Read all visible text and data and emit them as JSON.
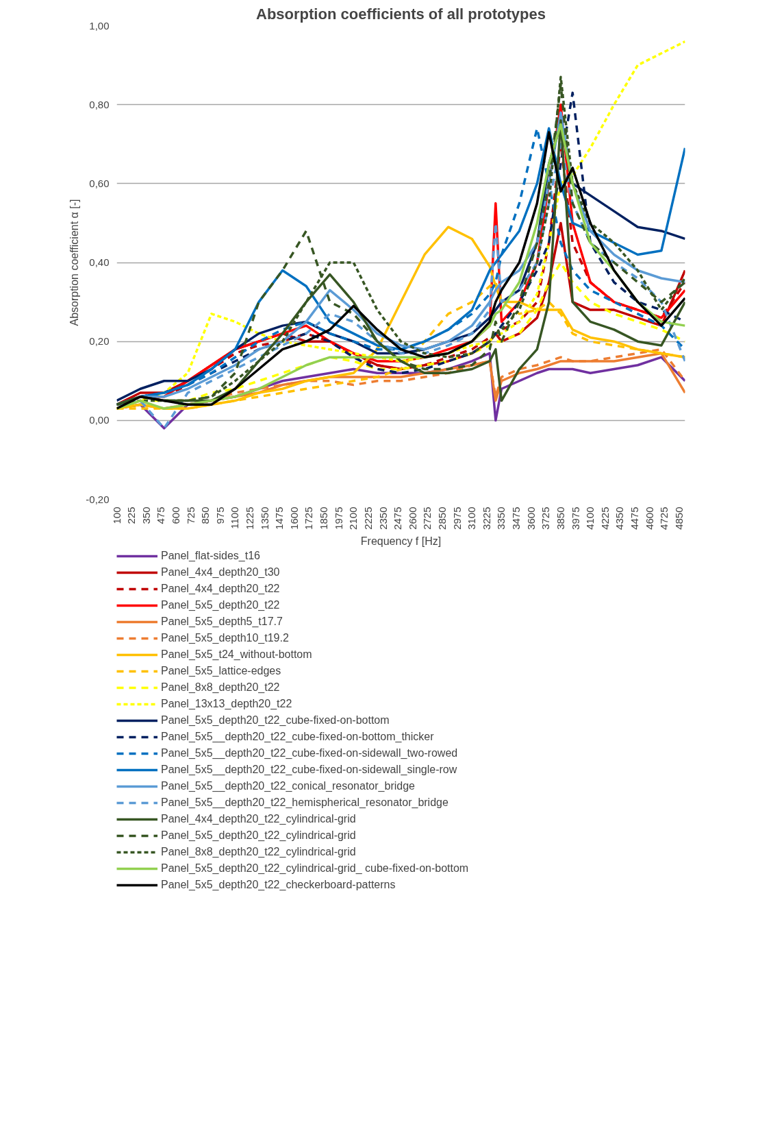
{
  "chart_data": {
    "type": "line",
    "title": "Absorption coefficients of all prototypes",
    "xlabel": "Frequency f [Hz]",
    "ylabel": "Absorption coefficient α [-]",
    "x": [
      100,
      300,
      500,
      700,
      900,
      1100,
      1300,
      1500,
      1700,
      1900,
      2100,
      2300,
      2500,
      2700,
      2900,
      3100,
      3250,
      3300,
      3350,
      3500,
      3650,
      3750,
      3850,
      3950,
      4100,
      4300,
      4500,
      4700,
      4900
    ],
    "xlim": [
      100,
      4900
    ],
    "xticks": [
      100,
      225,
      350,
      475,
      600,
      725,
      850,
      975,
      1100,
      1225,
      1350,
      1475,
      1600,
      1725,
      1850,
      1975,
      2100,
      2225,
      2350,
      2475,
      2600,
      2725,
      2850,
      2975,
      3100,
      3225,
      3350,
      3475,
      3600,
      3725,
      3850,
      3975,
      4100,
      4225,
      4350,
      4475,
      4600,
      4725,
      4850
    ],
    "ylim": [
      -0.2,
      1.0
    ],
    "yticks": [
      {
        "value": -0.2,
        "label": "-0,20"
      },
      {
        "value": 0,
        "label": "0,00"
      },
      {
        "value": 0.2,
        "label": "0,20"
      },
      {
        "value": 0.4,
        "label": "0,40"
      },
      {
        "value": 0.6,
        "label": "0,60"
      },
      {
        "value": 0.8,
        "label": "0,80"
      },
      {
        "value": 1.0,
        "label": "1,00"
      }
    ],
    "grid": "y",
    "legend": "bottom",
    "marker": "none",
    "series": [
      {
        "name": "Panel_flat-sides_t16",
        "color": "#7030a0",
        "line_style": "solid",
        "values": [
          0.03,
          0.04,
          -0.02,
          0.04,
          0.05,
          0.06,
          0.08,
          0.1,
          0.11,
          0.12,
          0.13,
          0.12,
          0.12,
          0.12,
          0.13,
          0.15,
          0.17,
          0.0,
          0.08,
          0.1,
          0.12,
          0.13,
          0.13,
          0.13,
          0.12,
          0.13,
          0.14,
          0.16,
          0.1
        ]
      },
      {
        "name": "Panel_4x4_depth20_t30",
        "color": "#c00000",
        "line_style": "solid",
        "values": [
          0.04,
          0.07,
          0.07,
          0.1,
          0.14,
          0.18,
          0.2,
          0.22,
          0.2,
          0.2,
          0.17,
          0.14,
          0.13,
          0.14,
          0.15,
          0.17,
          0.2,
          0.22,
          0.2,
          0.22,
          0.26,
          0.35,
          0.5,
          0.3,
          0.28,
          0.28,
          0.26,
          0.24,
          0.38
        ]
      },
      {
        "name": "Panel_4x4_depth20_t22",
        "color": "#c00000",
        "line_style": "dashed",
        "values": [
          0.04,
          0.06,
          0.06,
          0.09,
          0.13,
          0.17,
          0.19,
          0.2,
          0.22,
          0.2,
          0.16,
          0.14,
          0.13,
          0.14,
          0.16,
          0.18,
          0.21,
          0.22,
          0.23,
          0.25,
          0.3,
          0.45,
          0.7,
          0.45,
          0.35,
          0.3,
          0.28,
          0.26,
          0.35
        ]
      },
      {
        "name": "Panel_5x5_depth20_t22",
        "color": "#ff0000",
        "line_style": "solid",
        "values": [
          0.04,
          0.06,
          0.06,
          0.1,
          0.14,
          0.18,
          0.2,
          0.22,
          0.24,
          0.2,
          0.17,
          0.15,
          0.15,
          0.16,
          0.18,
          0.2,
          0.24,
          0.55,
          0.25,
          0.3,
          0.4,
          0.6,
          0.8,
          0.5,
          0.35,
          0.3,
          0.28,
          0.26,
          0.33
        ]
      },
      {
        "name": "Panel_5x5_depth5_t17.7",
        "color": "#ed7d31",
        "line_style": "solid",
        "values": [
          0.03,
          0.04,
          0.03,
          0.04,
          0.05,
          0.06,
          0.07,
          0.09,
          0.1,
          0.11,
          0.11,
          0.11,
          0.11,
          0.12,
          0.13,
          0.14,
          0.15,
          0.05,
          0.1,
          0.12,
          0.13,
          0.14,
          0.15,
          0.15,
          0.15,
          0.15,
          0.16,
          0.17,
          0.07
        ]
      },
      {
        "name": "Panel_5x5_depth10_t19.2",
        "color": "#ed7d31",
        "line_style": "dashed",
        "values": [
          0.03,
          0.04,
          0.03,
          0.04,
          0.05,
          0.07,
          0.08,
          0.09,
          0.1,
          0.1,
          0.09,
          0.1,
          0.1,
          0.11,
          0.12,
          0.14,
          0.15,
          0.06,
          0.11,
          0.13,
          0.14,
          0.15,
          0.16,
          0.15,
          0.15,
          0.16,
          0.17,
          0.18,
          0.1
        ]
      },
      {
        "name": "Panel_5x5_t24_without-bottom",
        "color": "#ffc000",
        "line_style": "solid",
        "values": [
          0.03,
          0.04,
          0.03,
          0.03,
          0.04,
          0.05,
          0.07,
          0.08,
          0.1,
          0.11,
          0.12,
          0.18,
          0.3,
          0.42,
          0.49,
          0.46,
          0.39,
          0.34,
          0.3,
          0.3,
          0.28,
          0.28,
          0.28,
          0.23,
          0.21,
          0.2,
          0.18,
          0.17,
          0.16
        ]
      },
      {
        "name": "Panel_5x5_lattice-edges",
        "color": "#ffc000",
        "line_style": "dashed",
        "values": [
          0.03,
          0.03,
          0.03,
          0.03,
          0.04,
          0.05,
          0.06,
          0.07,
          0.08,
          0.09,
          0.1,
          0.11,
          0.13,
          0.2,
          0.27,
          0.3,
          0.34,
          0.35,
          0.3,
          0.27,
          0.28,
          0.3,
          0.27,
          0.22,
          0.2,
          0.19,
          0.18,
          0.17,
          0.16
        ]
      },
      {
        "name": "Panel_8x8_depth20_t22",
        "color": "#ffff00",
        "line_style": "dashed",
        "values": [
          0.03,
          0.05,
          0.05,
          0.05,
          0.07,
          0.08,
          0.1,
          0.12,
          0.14,
          0.16,
          0.15,
          0.13,
          0.13,
          0.14,
          0.15,
          0.17,
          0.19,
          0.2,
          0.2,
          0.22,
          0.28,
          0.35,
          0.4,
          0.35,
          0.3,
          0.27,
          0.25,
          0.23,
          0.2
        ]
      },
      {
        "name": "Panel_13x13_depth20_t22",
        "color": "#ffff00",
        "line_style": "dotted",
        "values": [
          0.03,
          0.05,
          0.07,
          0.12,
          0.27,
          0.25,
          0.22,
          0.2,
          0.19,
          0.18,
          0.17,
          0.16,
          0.15,
          0.16,
          0.17,
          0.19,
          0.2,
          0.22,
          0.22,
          0.25,
          0.32,
          0.45,
          0.6,
          0.62,
          0.69,
          0.8,
          0.9,
          0.93,
          0.96
        ]
      },
      {
        "name": "Panel_5x5_depth20_t22_cube-fixed-on-bottom",
        "color": "#002060",
        "line_style": "solid",
        "values": [
          0.05,
          0.08,
          0.1,
          0.1,
          0.13,
          0.18,
          0.22,
          0.24,
          0.25,
          0.22,
          0.2,
          0.17,
          0.17,
          0.18,
          0.2,
          0.22,
          0.26,
          0.28,
          0.3,
          0.33,
          0.45,
          0.65,
          0.75,
          0.6,
          0.57,
          0.53,
          0.49,
          0.48,
          0.46
        ]
      },
      {
        "name": "Panel_5x5__depth20_t22_cube-fixed-on-bottom_thicker",
        "color": "#002060",
        "line_style": "dashed",
        "values": [
          0.04,
          0.06,
          0.07,
          0.09,
          0.12,
          0.15,
          0.18,
          0.2,
          0.22,
          0.2,
          0.16,
          0.13,
          0.12,
          0.13,
          0.15,
          0.17,
          0.2,
          0.22,
          0.24,
          0.3,
          0.38,
          0.45,
          0.65,
          0.83,
          0.45,
          0.35,
          0.3,
          0.28,
          0.25
        ]
      },
      {
        "name": "Panel_5x5__depth20_t22_cube-fixed-on-sidewall_two-rowed",
        "color": "#0070c0",
        "line_style": "dashed",
        "values": [
          0.04,
          0.06,
          0.07,
          0.09,
          0.12,
          0.16,
          0.2,
          0.23,
          0.25,
          0.22,
          0.2,
          0.18,
          0.18,
          0.2,
          0.23,
          0.27,
          0.32,
          0.35,
          0.42,
          0.55,
          0.74,
          0.6,
          0.45,
          0.38,
          0.33,
          0.3,
          0.27,
          0.24,
          0.18
        ]
      },
      {
        "name": "Panel_5x5__depth20_t22_cube-fixed-on-sidewall_single-row",
        "color": "#0070c0",
        "line_style": "solid",
        "values": [
          0.04,
          0.06,
          0.07,
          0.09,
          0.13,
          0.18,
          0.3,
          0.38,
          0.34,
          0.25,
          0.22,
          0.19,
          0.18,
          0.2,
          0.23,
          0.28,
          0.38,
          0.4,
          0.42,
          0.48,
          0.6,
          0.74,
          0.6,
          0.5,
          0.48,
          0.45,
          0.42,
          0.43,
          0.69
        ]
      },
      {
        "name": "Panel_5x5__depth20_t22_conical_resonator_bridge",
        "color": "#5b9bd5",
        "line_style": "solid",
        "values": [
          0.04,
          0.06,
          0.06,
          0.08,
          0.11,
          0.14,
          0.18,
          0.2,
          0.25,
          0.33,
          0.28,
          0.22,
          0.19,
          0.18,
          0.2,
          0.24,
          0.3,
          0.33,
          0.35,
          0.38,
          0.45,
          0.6,
          0.78,
          0.6,
          0.48,
          0.42,
          0.38,
          0.36,
          0.35
        ]
      },
      {
        "name": "Panel_5x5__depth20_t22_hemispherical_resonator_bridge",
        "color": "#5b9bd5",
        "line_style": "dashed",
        "values": [
          0.04,
          0.05,
          -0.02,
          0.07,
          0.1,
          0.13,
          0.16,
          0.19,
          0.22,
          0.27,
          0.25,
          0.2,
          0.17,
          0.17,
          0.19,
          0.22,
          0.28,
          0.5,
          0.3,
          0.33,
          0.4,
          0.55,
          0.7,
          0.55,
          0.45,
          0.4,
          0.36,
          0.3,
          0.15
        ]
      },
      {
        "name": "Panel_4x4_depth20_t22_cylindrical-grid",
        "color": "#375623",
        "line_style": "solid",
        "values": [
          0.04,
          0.06,
          0.05,
          0.05,
          0.05,
          0.08,
          0.15,
          0.22,
          0.3,
          0.37,
          0.3,
          0.2,
          0.15,
          0.12,
          0.12,
          0.13,
          0.15,
          0.18,
          0.05,
          0.13,
          0.18,
          0.3,
          0.76,
          0.3,
          0.25,
          0.23,
          0.2,
          0.19,
          0.3
        ]
      },
      {
        "name": "Panel_5x5_depth20_t22_cylindrical-grid",
        "color": "#375623",
        "line_style": "dashed",
        "values": [
          0.04,
          0.06,
          0.05,
          0.05,
          0.06,
          0.12,
          0.3,
          0.38,
          0.48,
          0.3,
          0.27,
          0.2,
          0.15,
          0.13,
          0.13,
          0.14,
          0.18,
          0.25,
          0.2,
          0.3,
          0.45,
          0.6,
          0.85,
          0.55,
          0.45,
          0.4,
          0.35,
          0.3,
          0.35
        ]
      },
      {
        "name": "Panel_8x8_depth20_t22_cylindrical-grid",
        "color": "#375623",
        "line_style": "dotted",
        "values": [
          0.04,
          0.05,
          0.05,
          0.05,
          0.06,
          0.1,
          0.15,
          0.2,
          0.3,
          0.4,
          0.4,
          0.28,
          0.2,
          0.17,
          0.16,
          0.17,
          0.2,
          0.22,
          0.23,
          0.28,
          0.4,
          0.55,
          0.87,
          0.6,
          0.5,
          0.45,
          0.38,
          0.28,
          0.36
        ]
      },
      {
        "name": "Panel_5x5_depth20_t22_cylindrical-grid_ cube-fixed-on-bottom",
        "color": "#92d050",
        "line_style": "solid",
        "values": [
          0.03,
          0.05,
          0.03,
          0.04,
          0.05,
          0.06,
          0.08,
          0.11,
          0.14,
          0.16,
          0.16,
          0.16,
          0.16,
          0.16,
          0.17,
          0.2,
          0.24,
          0.27,
          0.28,
          0.35,
          0.5,
          0.65,
          0.75,
          0.6,
          0.45,
          0.38,
          0.3,
          0.25,
          0.24
        ]
      },
      {
        "name": "Panel_5x5_depth20_t22_checkerboard-patterns",
        "color": "#000000",
        "line_style": "solid",
        "values": [
          0.03,
          0.06,
          0.05,
          0.04,
          0.04,
          0.08,
          0.13,
          0.18,
          0.2,
          0.23,
          0.29,
          0.23,
          0.18,
          0.16,
          0.17,
          0.2,
          0.25,
          0.3,
          0.33,
          0.4,
          0.55,
          0.73,
          0.58,
          0.64,
          0.5,
          0.38,
          0.3,
          0.24,
          0.31
        ]
      }
    ]
  }
}
